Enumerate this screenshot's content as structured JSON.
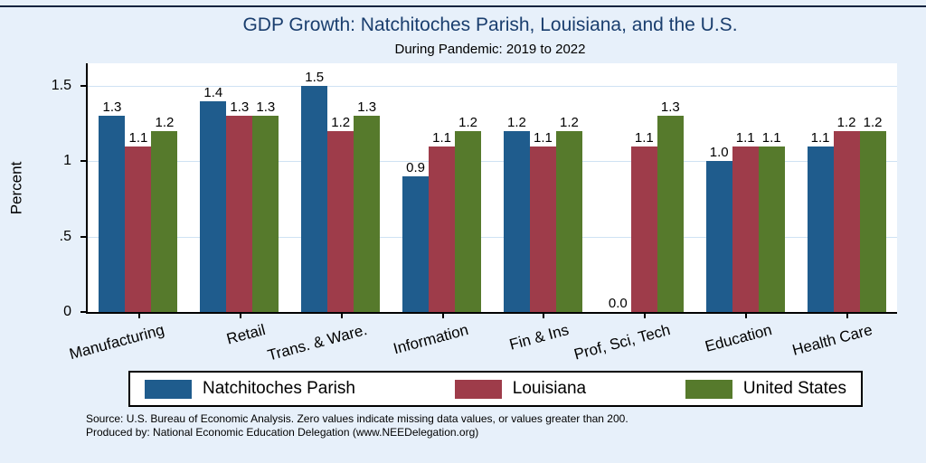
{
  "chart_data": {
    "type": "bar",
    "title": "GDP Growth: Natchitoches Parish, Louisiana, and the U.S.",
    "subtitle": "During Pandemic: 2019 to 2022",
    "xlabel": "",
    "ylabel": "Percent",
    "ylim": [
      0,
      1.65
    ],
    "yticks": [
      0,
      0.5,
      1,
      1.5
    ],
    "ytick_labels": [
      "0",
      ".5",
      "1",
      "1.5"
    ],
    "grid": true,
    "legend_position": "bottom",
    "background_color": "#e7f0fa",
    "plot_background_color": "#ffffff",
    "grid_color": "#cfe2f3",
    "categories": [
      "Manufacturing",
      "Retail",
      "Trans. & Ware.",
      "Information",
      "Fin & Ins",
      "Prof, Sci, Tech",
      "Education",
      "Health Care"
    ],
    "series": [
      {
        "name": "Natchitoches Parish",
        "color": "#1f5c8d",
        "values": [
          1.3,
          1.4,
          1.5,
          0.9,
          1.2,
          0.0,
          1.0,
          1.1
        ],
        "labels": [
          "1.3",
          "1.4",
          "1.5",
          "0.9",
          "1.2",
          "0.0",
          "1.0",
          "1.1"
        ]
      },
      {
        "name": "Louisiana",
        "color": "#9e3c4a",
        "values": [
          1.1,
          1.3,
          1.2,
          1.1,
          1.1,
          1.1,
          1.1,
          1.2
        ],
        "labels": [
          "1.1",
          "1.3",
          "1.2",
          "1.1",
          "1.1",
          "1.1",
          "1.1",
          "1.2"
        ]
      },
      {
        "name": "United States",
        "color": "#567a2c",
        "values": [
          1.2,
          1.3,
          1.3,
          1.2,
          1.2,
          1.3,
          1.1,
          1.2
        ],
        "labels": [
          "1.2",
          "1.3",
          "1.3",
          "1.2",
          "1.2",
          "1.3",
          "1.1",
          "1.2"
        ]
      }
    ]
  },
  "notes": {
    "line1": "Source: U.S. Bureau of Economic Analysis. Zero values indicate missing data values, or values greater than 200.",
    "line2": "Produced by: National Economic Education Delegation (www.NEEDelegation.org)"
  }
}
